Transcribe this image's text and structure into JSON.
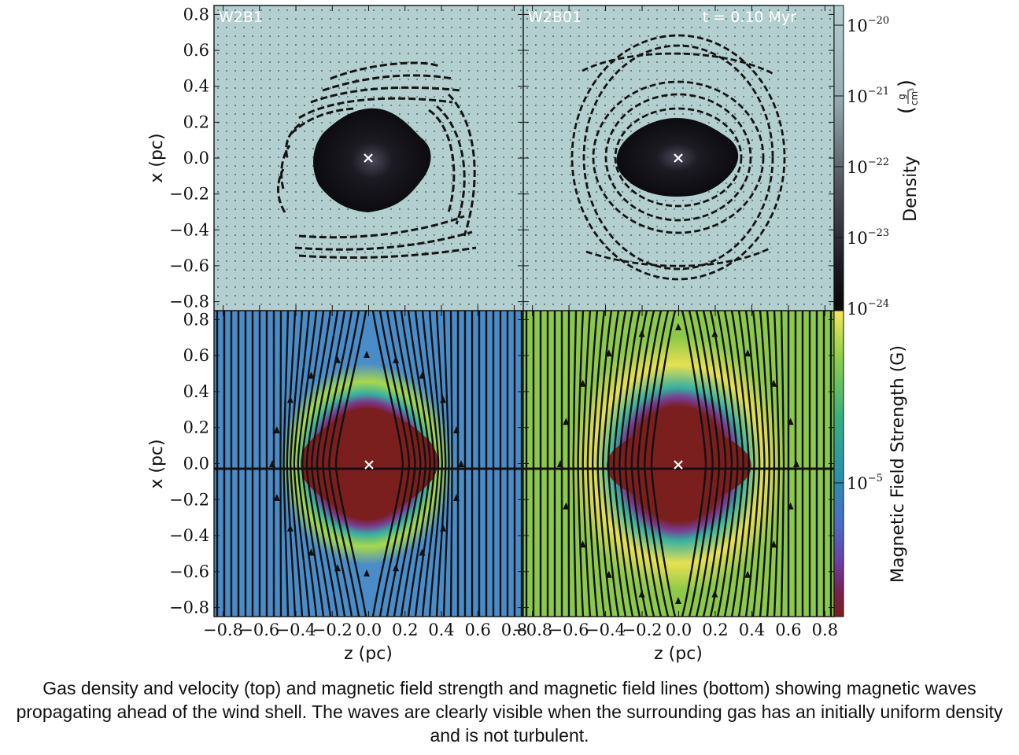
{
  "chart_data": [
    {
      "type": "heatmap",
      "panel": "top-left",
      "label": "W2B1",
      "quantity": "Gas density and velocity",
      "xlabel": "",
      "ylabel": "x  (pc)",
      "xlim": [
        -0.85,
        0.85
      ],
      "ylim": [
        -0.85,
        0.85
      ],
      "yticks": [
        "0.8",
        "0.6",
        "0.4",
        "0.2",
        "0.0",
        "−0.2",
        "−0.4",
        "−0.6",
        "−0.8"
      ],
      "center_marker": [
        0.0,
        0.0
      ]
    },
    {
      "type": "heatmap",
      "panel": "top-right",
      "label": "W2B01",
      "time_label": "t = 0.10 Myr",
      "quantity": "Gas density and velocity",
      "xlim": [
        -0.85,
        0.85
      ],
      "ylim": [
        -0.85,
        0.85
      ],
      "center_marker": [
        0.0,
        0.0
      ]
    },
    {
      "type": "heatmap",
      "panel": "bottom-left",
      "quantity": "Magnetic field strength and field lines",
      "xlabel": "z  (pc)",
      "ylabel": "x  (pc)",
      "xlim": [
        -0.85,
        0.85
      ],
      "ylim": [
        -0.85,
        0.85
      ],
      "xticks": [
        "−0.8",
        "−0.6",
        "−0.4",
        "−0.2",
        "0.0",
        "0.2",
        "0.4",
        "0.6",
        "0.8"
      ],
      "yticks": [
        "0.8",
        "0.6",
        "0.4",
        "0.2",
        "0.0",
        "−0.2",
        "−0.4",
        "−0.6",
        "−0.8"
      ],
      "center_marker": [
        0.0,
        0.0
      ]
    },
    {
      "type": "heatmap",
      "panel": "bottom-right",
      "quantity": "Magnetic field strength and field lines",
      "xlabel": "z  (pc)",
      "xlim": [
        -0.85,
        0.85
      ],
      "ylim": [
        -0.85,
        0.85
      ],
      "xticks": [
        "−0.8",
        "−0.6",
        "−0.4",
        "−0.2",
        "0.0",
        "0.2",
        "0.4",
        "0.6",
        "0.8"
      ],
      "center_marker": [
        0.0,
        0.0
      ]
    }
  ],
  "colorbars": {
    "density": {
      "label": "Density",
      "unit_num": "g",
      "unit_den": "cm",
      "unit_den_exp": "3",
      "tick_base": "10",
      "tick_exps": [
        "−20",
        "−21",
        "−22",
        "−23",
        "−24"
      ],
      "colors": [
        "#b3cfcf",
        "#8a9aa0",
        "#4a4a55",
        "#1a1820",
        "#0a0a0a"
      ]
    },
    "magnetic": {
      "label": "Magnetic Field Strength  (G)",
      "tick_base": "10",
      "tick_exps": [
        "−5"
      ],
      "colors": [
        "#f6e65a",
        "#8fcf4a",
        "#36b080",
        "#2a8fb0",
        "#4a6cc8",
        "#6a40a8",
        "#7a2050",
        "#7a1e1e"
      ]
    }
  },
  "caption": "Gas density and velocity (top) and magnetic field strength and magnetic field lines (bottom) showing magnetic waves propagating ahead of the wind shell. The waves are clearly visible when the surrounding gas has an initially uniform density and is not turbulent."
}
